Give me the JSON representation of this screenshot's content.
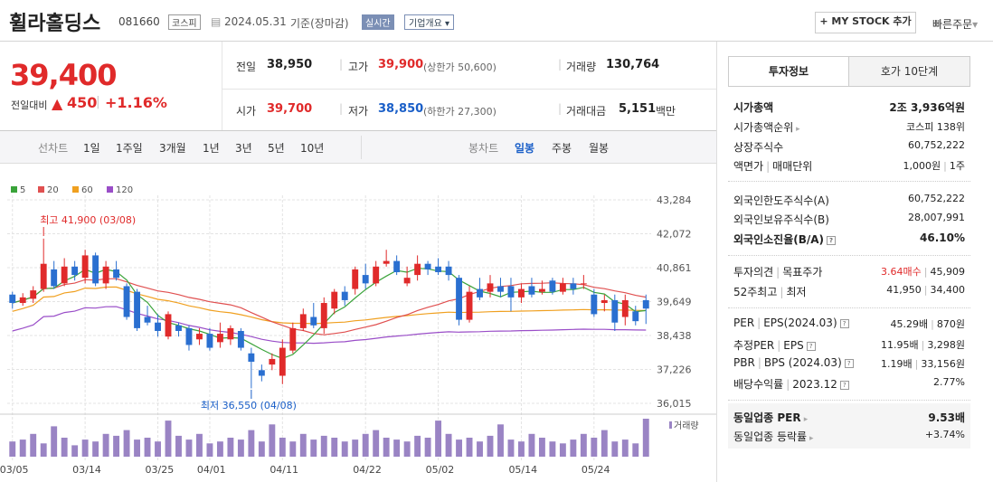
{
  "stock": {
    "name": "휠라홀딩스",
    "code": "081660",
    "market": "코스피",
    "date": "2024.05.31",
    "basis": "기준(장마감)",
    "realtime": "실시간",
    "overview": "기업개요",
    "mystock": "+ MY STOCK 추가",
    "quick": "빠른주문"
  },
  "price": {
    "current": "39,400",
    "change_label": "전일대비",
    "change_amt": "450",
    "change_pct": "+1.16%"
  },
  "summary": {
    "prev_label": "전일",
    "prev": "38,950",
    "high_label": "고가",
    "high": "39,900",
    "upper_limit": "(상한가 50,600)",
    "volume_label": "거래량",
    "volume": "130,764",
    "open_label": "시가",
    "open": "39,700",
    "low_label": "저가",
    "low": "38,850",
    "lower_limit": "(하한가 27,300)",
    "amount_label": "거래대금",
    "amount": "5,151",
    "amount_unit": "백만"
  },
  "periods": {
    "line_label": "선차트",
    "items": [
      "1일",
      "1주일",
      "3개월",
      "1년",
      "3년",
      "5년",
      "10년"
    ],
    "candle_label": "봉차트",
    "candle_items": [
      "일봉",
      "주봉",
      "월봉"
    ],
    "candle_selected": "일봉"
  },
  "chart_data": {
    "type": "candlestick",
    "legend": [
      {
        "name": "5",
        "color": "#3aa33a"
      },
      {
        "name": "20",
        "color": "#e05050"
      },
      {
        "name": "60",
        "color": "#f0a020"
      },
      {
        "name": "120",
        "color": "#9a4ec8"
      }
    ],
    "y_ticks": [
      "43,284",
      "42,072",
      "40,861",
      "39,649",
      "38,438",
      "37,226",
      "36,015"
    ],
    "ylim": [
      36015,
      43284
    ],
    "x_ticks": [
      "03/05",
      "03/14",
      "03/25",
      "04/01",
      "04/11",
      "04/22",
      "05/02",
      "05/14",
      "05/24"
    ],
    "max_annotation": "최고 41,900 (03/08)",
    "min_annotation": "최저 36,550 (04/08)",
    "volume_label": "거래량",
    "candles": [
      {
        "o": 39900,
        "c": 39600,
        "h": 40000,
        "l": 39400
      },
      {
        "o": 39600,
        "c": 39800,
        "h": 39950,
        "l": 39500
      },
      {
        "o": 39750,
        "c": 40050,
        "h": 40200,
        "l": 39600
      },
      {
        "o": 40100,
        "c": 41000,
        "h": 41900,
        "l": 40000
      },
      {
        "o": 40800,
        "c": 40200,
        "h": 41100,
        "l": 40100
      },
      {
        "o": 40300,
        "c": 40900,
        "h": 41200,
        "l": 40200
      },
      {
        "o": 40900,
        "c": 40600,
        "h": 41100,
        "l": 40400
      },
      {
        "o": 40500,
        "c": 41300,
        "h": 41500,
        "l": 40300
      },
      {
        "o": 41300,
        "c": 40300,
        "h": 41400,
        "l": 40200
      },
      {
        "o": 40300,
        "c": 40900,
        "h": 41100,
        "l": 40100
      },
      {
        "o": 40800,
        "c": 40500,
        "h": 41100,
        "l": 40400
      },
      {
        "o": 40200,
        "c": 39100,
        "h": 40300,
        "l": 39000
      },
      {
        "o": 40000,
        "c": 38700,
        "h": 40100,
        "l": 38600
      },
      {
        "o": 39100,
        "c": 38900,
        "h": 39500,
        "l": 38800
      },
      {
        "o": 38900,
        "c": 38600,
        "h": 39200,
        "l": 38400
      },
      {
        "o": 38400,
        "c": 39200,
        "h": 39300,
        "l": 38300
      },
      {
        "o": 38800,
        "c": 38600,
        "h": 38900,
        "l": 38400
      },
      {
        "o": 38700,
        "c": 38100,
        "h": 38800,
        "l": 37900
      },
      {
        "o": 38300,
        "c": 38500,
        "h": 38700,
        "l": 38100
      },
      {
        "o": 38500,
        "c": 38000,
        "h": 38700,
        "l": 37900
      },
      {
        "o": 38200,
        "c": 38500,
        "h": 38900,
        "l": 38000
      },
      {
        "o": 38300,
        "c": 38700,
        "h": 38800,
        "l": 38100
      },
      {
        "o": 38600,
        "c": 38000,
        "h": 38700,
        "l": 37900
      },
      {
        "o": 37800,
        "c": 37500,
        "h": 38000,
        "l": 36550
      },
      {
        "o": 37200,
        "c": 37000,
        "h": 37400,
        "l": 36800
      },
      {
        "o": 37400,
        "c": 37600,
        "h": 37800,
        "l": 37200
      },
      {
        "o": 37000,
        "c": 38000,
        "h": 38300,
        "l": 36700
      },
      {
        "o": 37900,
        "c": 38700,
        "h": 38900,
        "l": 37800
      },
      {
        "o": 38700,
        "c": 39200,
        "h": 39400,
        "l": 38600
      },
      {
        "o": 39100,
        "c": 38800,
        "h": 39600,
        "l": 38700
      },
      {
        "o": 38700,
        "c": 39600,
        "h": 39800,
        "l": 38500
      },
      {
        "o": 39400,
        "c": 40000,
        "h": 40100,
        "l": 39200
      },
      {
        "o": 40000,
        "c": 39700,
        "h": 40200,
        "l": 39500
      },
      {
        "o": 40100,
        "c": 40800,
        "h": 40900,
        "l": 39900
      },
      {
        "o": 40600,
        "c": 40300,
        "h": 41000,
        "l": 40100
      },
      {
        "o": 40300,
        "c": 40900,
        "h": 41100,
        "l": 40200
      },
      {
        "o": 41000,
        "c": 41100,
        "h": 41500,
        "l": 40900
      },
      {
        "o": 41100,
        "c": 40700,
        "h": 41300,
        "l": 40600
      },
      {
        "o": 40300,
        "c": 40500,
        "h": 40900,
        "l": 40200
      },
      {
        "o": 40600,
        "c": 41000,
        "h": 41300,
        "l": 40400
      },
      {
        "o": 41000,
        "c": 40800,
        "h": 41100,
        "l": 40600
      },
      {
        "o": 40900,
        "c": 40700,
        "h": 41200,
        "l": 40600
      },
      {
        "o": 40900,
        "c": 40600,
        "h": 41100,
        "l": 40400
      },
      {
        "o": 40500,
        "c": 39000,
        "h": 40600,
        "l": 38800
      },
      {
        "o": 39000,
        "c": 40000,
        "h": 40200,
        "l": 38900
      },
      {
        "o": 40100,
        "c": 39800,
        "h": 40500,
        "l": 39700
      },
      {
        "o": 40000,
        "c": 40300,
        "h": 40600,
        "l": 39800
      },
      {
        "o": 40200,
        "c": 40000,
        "h": 40500,
        "l": 39800
      },
      {
        "o": 40200,
        "c": 39800,
        "h": 40500,
        "l": 39300
      },
      {
        "o": 39800,
        "c": 40100,
        "h": 40300,
        "l": 39600
      },
      {
        "o": 40200,
        "c": 39900,
        "h": 40500,
        "l": 39800
      },
      {
        "o": 40000,
        "c": 40100,
        "h": 40400,
        "l": 39900
      },
      {
        "o": 40400,
        "c": 40000,
        "h": 40500,
        "l": 39900
      },
      {
        "o": 40000,
        "c": 40300,
        "h": 40500,
        "l": 39900
      },
      {
        "o": 40300,
        "c": 40100,
        "h": 40500,
        "l": 39900
      },
      {
        "o": 40300,
        "c": 40300,
        "h": 40600,
        "l": 40100
      },
      {
        "o": 39900,
        "c": 39200,
        "h": 40100,
        "l": 39100
      },
      {
        "o": 39600,
        "c": 39700,
        "h": 39900,
        "l": 39300
      },
      {
        "o": 39700,
        "c": 38900,
        "h": 39900,
        "l": 38600
      },
      {
        "o": 39100,
        "c": 39700,
        "h": 39900,
        "l": 38800
      },
      {
        "o": 39300,
        "c": 38950,
        "h": 39500,
        "l": 38800
      },
      {
        "o": 39700,
        "c": 39400,
        "h": 39900,
        "l": 38850
      }
    ],
    "volumes": [
      40,
      45,
      60,
      35,
      80,
      50,
      30,
      45,
      40,
      60,
      55,
      70,
      45,
      50,
      40,
      95,
      55,
      45,
      60,
      35,
      40,
      50,
      45,
      70,
      40,
      85,
      50,
      40,
      60,
      45,
      55,
      50,
      40,
      45,
      60,
      70,
      50,
      45,
      40,
      55,
      50,
      95,
      60,
      45,
      50,
      40,
      55,
      85,
      45,
      40,
      60,
      50,
      40,
      35,
      45,
      60,
      50,
      70,
      40,
      45,
      35,
      100
    ]
  },
  "tabs": {
    "items": [
      "투자정보",
      "호가 10단계"
    ],
    "selected": "투자정보"
  },
  "info": {
    "market_cap_label": "시가총액",
    "market_cap": "2조 3,936억원",
    "rank_label": "시가총액순위",
    "rank": "코스피 138위",
    "shares_label": "상장주식수",
    "shares": "60,752,222",
    "face_label": "액면가",
    "unit_label": "매매단위",
    "face": "1,000원",
    "unit": "1주",
    "foreign_limit_label": "외국인한도주식수(A)",
    "foreign_limit": "60,752,222",
    "foreign_hold_label": "외국인보유주식수(B)",
    "foreign_hold": "28,007,991",
    "foreign_rate_label": "외국인소진율(B/A)",
    "foreign_rate": "46.10%",
    "opinion_label": "투자의견",
    "target_label": "목표주가",
    "opinion": "3.64매수",
    "target": "45,909",
    "w52_label": "52주최고",
    "w52low_label": "최저",
    "w52_high": "41,950",
    "w52_low": "34,400",
    "per_label": "PER",
    "eps_label": "EPS(2024.03)",
    "per": "45.29배",
    "eps": "870원",
    "est_per_label": "추정PER",
    "est_eps_label": "EPS",
    "est_per": "11.95배",
    "est_eps": "3,298원",
    "pbr_label": "PBR",
    "bps_label": "BPS (2024.03)",
    "pbr": "1.19배",
    "bps": "33,156원",
    "div_label": "배당수익률",
    "div_year": "2023.12",
    "div": "2.77%",
    "peer_per_label": "동일업종 PER",
    "peer_per": "9.53배",
    "peer_chg_label": "동일업종 등락률",
    "peer_chg": "+3.74%"
  }
}
